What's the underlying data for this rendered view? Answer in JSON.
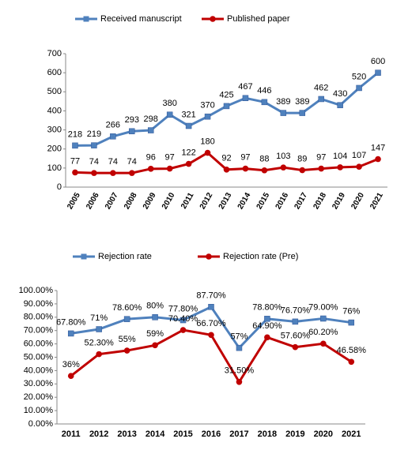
{
  "chart_data": [
    {
      "type": "line",
      "legend": "top",
      "categories": [
        "2005",
        "2006",
        "2007",
        "2008",
        "2009",
        "2010",
        "2011",
        "2012",
        "2013",
        "2014",
        "2015",
        "2016",
        "2017",
        "2018",
        "2019",
        "2020",
        "2021"
      ],
      "series": [
        {
          "name": "Received manuscript",
          "color": "#4f81bd",
          "marker": "square",
          "values": [
            218,
            219,
            266,
            293,
            298,
            380,
            321,
            370,
            425,
            467,
            446,
            389,
            389,
            462,
            430,
            520,
            600
          ]
        },
        {
          "name": "Published paper",
          "color": "#c00000",
          "marker": "circle",
          "values": [
            77,
            74,
            74,
            74,
            96,
            97,
            122,
            180,
            92,
            97,
            88,
            103,
            89,
            97,
            104,
            107,
            147
          ]
        }
      ],
      "ylim": [
        0,
        700
      ],
      "yticks": [
        0,
        100,
        200,
        300,
        400,
        500,
        600,
        700
      ]
    },
    {
      "type": "line",
      "legend": "top",
      "categories": [
        "2011",
        "2012",
        "2013",
        "2014",
        "2015",
        "2016",
        "2017",
        "2018",
        "2019",
        "2020",
        "2021"
      ],
      "series": [
        {
          "name": "Rejection rate",
          "color": "#4f81bd",
          "marker": "square",
          "values": [
            67.8,
            71,
            78.6,
            80,
            77.8,
            87.7,
            57,
            78.8,
            76.7,
            79,
            76
          ],
          "value_labels": [
            "67.80%",
            "71%",
            "78.60%",
            "80%",
            "77.80%",
            "87.70%",
            "57%",
            "78.80%",
            "76.70%",
            "79.00%",
            "76%"
          ]
        },
        {
          "name": "Rejection rate (Pre)",
          "color": "#c00000",
          "marker": "circle",
          "values": [
            36,
            52.3,
            55,
            59,
            70.4,
            66.7,
            31.5,
            64.9,
            57.6,
            60.2,
            46.58
          ],
          "value_labels": [
            "36%",
            "52.30%",
            "55%",
            "59%",
            "70.40%",
            "66.70%",
            "31.50%",
            "64.90%",
            "57.60%",
            "60.20%",
            "46.58%"
          ]
        }
      ],
      "ylim": [
        0,
        100
      ],
      "yticks": [
        {
          "value": 0,
          "label": "0.00%"
        },
        {
          "value": 10,
          "label": "10.00%"
        },
        {
          "value": 20,
          "label": "20.00%"
        },
        {
          "value": 30,
          "label": "30.00%"
        },
        {
          "value": 40,
          "label": "40.00%"
        },
        {
          "value": 50,
          "label": "50.00%"
        },
        {
          "value": 60,
          "label": "60.00%"
        },
        {
          "value": 70,
          "label": "70.00%"
        },
        {
          "value": 80,
          "label": "80.00%"
        },
        {
          "value": 90,
          "label": "90.00%"
        },
        {
          "value": 100,
          "label": "100.00%"
        }
      ]
    }
  ]
}
